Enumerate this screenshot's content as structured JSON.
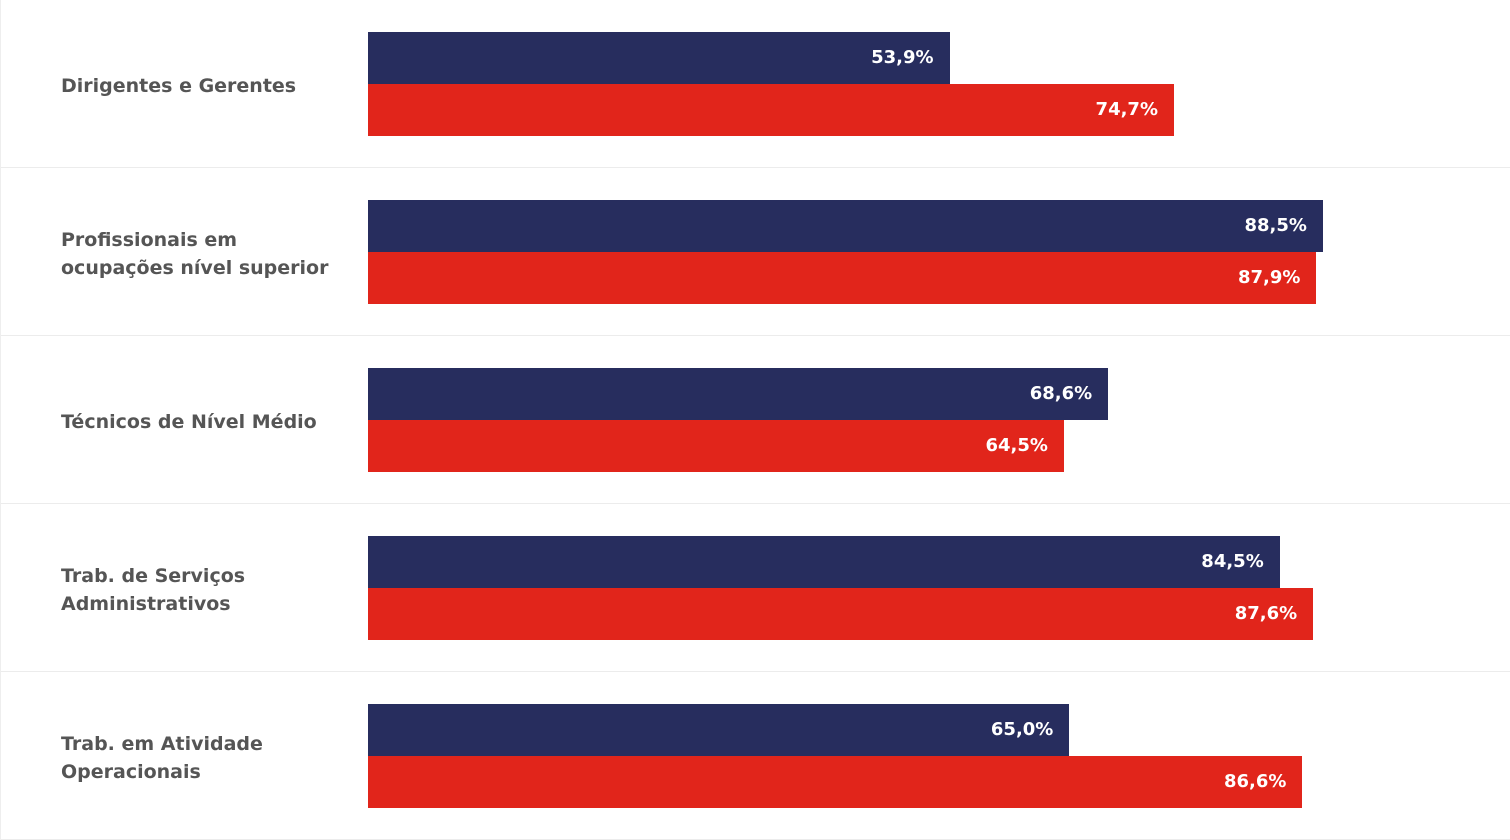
{
  "chart_data": {
    "type": "hbar",
    "categories": [
      "Dirigentes e Gerentes",
      "Profissionais em\nocupações nível superior",
      "Técnicos de Nível Médio",
      "Trab. de Serviços\nAdministrativos",
      "Trab. em Atividade\nOperacionais"
    ],
    "series": [
      {
        "color": "#272d5e",
        "values": [
          53.9,
          88.5,
          68.6,
          84.5,
          65.0
        ],
        "value_labels": [
          "53,9%",
          "88,5%",
          "68,6%",
          "84,5%",
          "65,0%"
        ]
      },
      {
        "color": "#e1251b",
        "values": [
          74.7,
          87.9,
          64.5,
          87.6,
          86.6
        ],
        "value_labels": [
          "74,7%",
          "87,9%",
          "64,5%",
          "87,6%",
          "86,6%"
        ]
      }
    ],
    "xlim": [
      0,
      100
    ]
  }
}
